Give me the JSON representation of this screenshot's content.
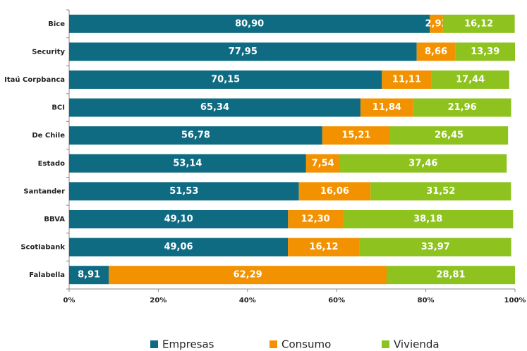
{
  "chart_data": {
    "type": "stacked_barh",
    "categories": [
      "Bice",
      "Security",
      "Itaú Corpbanca",
      "BCI",
      "De Chile",
      "Estado",
      "Santander",
      "BBVA",
      "Scotiabank",
      "Falabella"
    ],
    "series": [
      {
        "name": "Empresas",
        "color": "#0e6b82",
        "values": [
          80.9,
          77.95,
          70.15,
          65.34,
          56.78,
          53.14,
          51.53,
          49.1,
          49.06,
          8.91
        ],
        "value_labels": [
          "80,90",
          "77,95",
          "70,15",
          "65,34",
          "56,78",
          "53,14",
          "51,53",
          "49,10",
          "49,06",
          "8,91"
        ]
      },
      {
        "name": "Consumo",
        "color": "#f39200",
        "values": [
          2.92,
          8.66,
          11.11,
          11.84,
          15.21,
          7.54,
          16.06,
          12.3,
          16.12,
          62.29
        ],
        "value_labels": [
          "2,92",
          "8,66",
          "11,11",
          "11,84",
          "15,21",
          "7,54",
          "16,06",
          "12,30",
          "16,12",
          "62,29"
        ]
      },
      {
        "name": "Vivienda",
        "color": "#8dc21f",
        "values": [
          16.12,
          13.39,
          17.44,
          21.96,
          26.45,
          37.46,
          31.52,
          38.18,
          33.97,
          28.81
        ],
        "value_labels": [
          "16,12",
          "13,39",
          "17,44",
          "21,96",
          "26,45",
          "37,46",
          "31,52",
          "38,18",
          "33,97",
          "28,81"
        ]
      }
    ],
    "xlim": [
      0,
      100
    ],
    "xticks": [
      {
        "value": 0,
        "label": "0%"
      },
      {
        "value": 20,
        "label": "20%"
      },
      {
        "value": 40,
        "label": "40%"
      },
      {
        "value": 60,
        "label": "60%"
      },
      {
        "value": 80,
        "label": "80%"
      },
      {
        "value": 100,
        "label": "100%"
      }
    ],
    "grid": false,
    "legend": "bottom"
  }
}
